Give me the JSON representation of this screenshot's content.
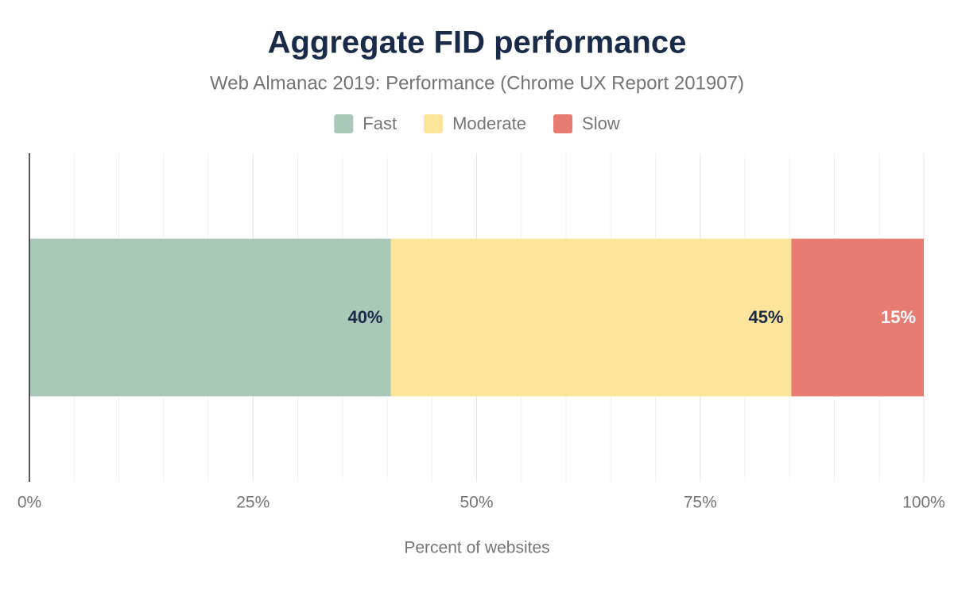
{
  "chart_data": {
    "type": "stacked_barh",
    "title": "Aggregate FID performance",
    "subtitle": "Web Almanac 2019: Performance (Chrome UX Report 201907)",
    "x_label": "Percent of websites",
    "categories": [
      null
    ],
    "series": [
      {
        "name": "Fast",
        "color": "#a8c9b8",
        "label_color": "#1a2b49",
        "values": [
          40.4
        ],
        "value_labels": [
          "40%"
        ]
      },
      {
        "name": "Moderate",
        "color": "#fde49b",
        "label_color": "#1a2b49",
        "values": [
          44.8
        ],
        "value_labels": [
          "45%"
        ]
      },
      {
        "name": "Slow",
        "color": "#e77c73",
        "label_color": "#ffffff",
        "values": [
          14.8
        ],
        "value_labels": [
          "15%"
        ]
      }
    ],
    "xlim": [
      0,
      100
    ],
    "xticks": [
      {
        "value": 0,
        "label": "0%"
      },
      {
        "value": 25,
        "label": "25%"
      },
      {
        "value": 50,
        "label": "50%"
      },
      {
        "value": 75,
        "label": "75%"
      },
      {
        "value": 100,
        "label": "100%"
      }
    ],
    "minor_xticks": [
      5,
      10,
      15,
      20,
      30,
      35,
      40,
      45,
      55,
      60,
      65,
      70,
      80,
      85,
      90,
      95
    ],
    "grid": true,
    "legend": "top"
  }
}
